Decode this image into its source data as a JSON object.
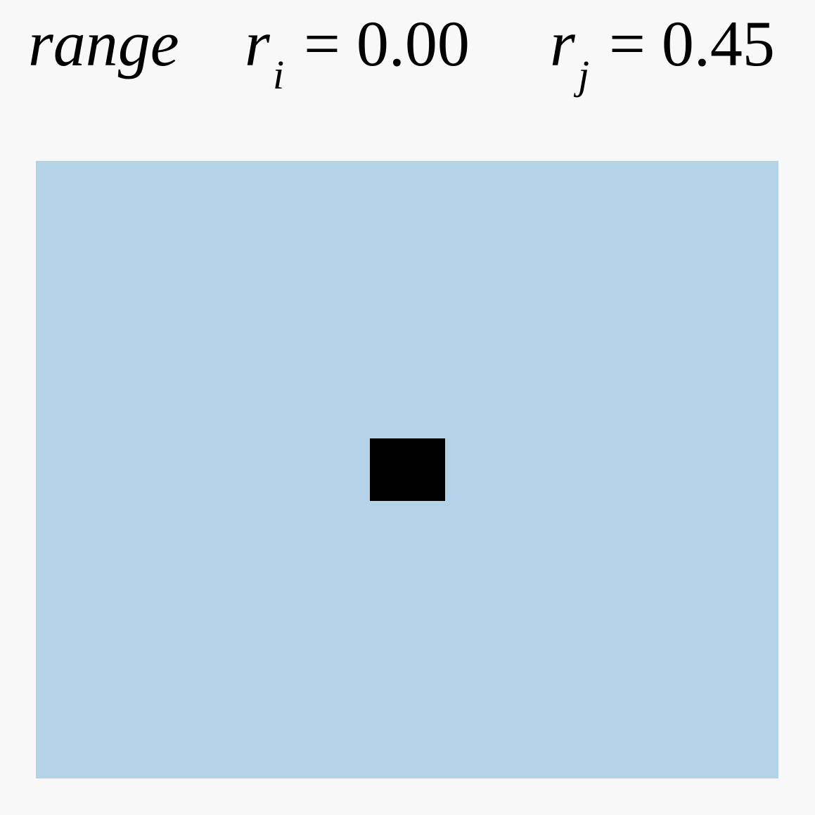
{
  "title": {
    "mode": "range",
    "ri": {
      "symbol": "r",
      "subscript": "i",
      "value_text": "= 0.00",
      "value": 0.0
    },
    "rj": {
      "symbol": "r",
      "subscript": "j",
      "value_text": "= 0.45",
      "value": 0.45
    }
  },
  "colors": {
    "background": "#f8f8f8",
    "panel": "#b5d3e8",
    "marker": "#000000"
  }
}
